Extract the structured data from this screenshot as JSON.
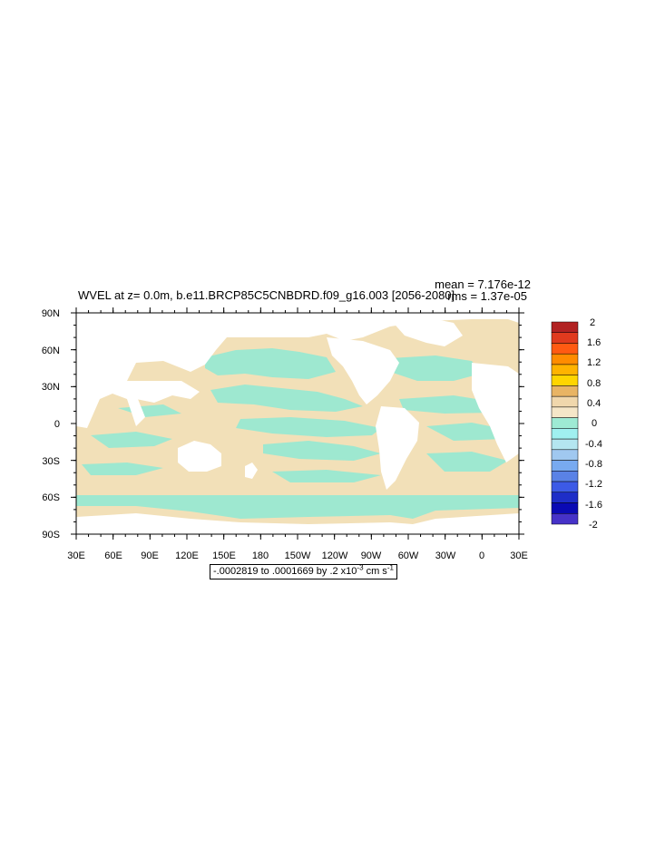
{
  "title": "WVEL at z=   0.0m, b.e11.BRCP85C5CNBDRD.f09_g16.003 [2056-2080]",
  "stats": {
    "mean": "mean = 7.176e-12",
    "rms": "rms = 1.37e-05"
  },
  "range_text": "-.0002819 to .0001669 by .2 x10",
  "range_exp": "-3",
  "range_units": " cm s",
  "range_units_exp": "-1",
  "lat_labels": [
    "90N",
    "60N",
    "30N",
    "0",
    "30S",
    "60S",
    "90S"
  ],
  "lon_labels": [
    "30E",
    "60E",
    "90E",
    "120E",
    "150E",
    "180",
    "150W",
    "120W",
    "90W",
    "60W",
    "30W",
    "0",
    "30E"
  ],
  "colorbar": {
    "labels": [
      "2",
      "1.6",
      "1.2",
      "0.8",
      "0.4",
      "0",
      "-0.4",
      "-0.8",
      "-1.2",
      "-1.6",
      "-2"
    ],
    "colors": [
      "#b22222",
      "#e03a1e",
      "#ff5a12",
      "#ff8c00",
      "#ffb300",
      "#ffd500",
      "#e8b464",
      "#f0d7ac",
      "#f5e6c8",
      "#9eead4",
      "#a0f0f0",
      "#b4e6f0",
      "#a0c8f0",
      "#78aaf0",
      "#5a82e6",
      "#3c5ae6",
      "#1e2ec8",
      "#0a0ab4",
      "#4632c8"
    ]
  },
  "fill_colors": {
    "land": "#ffffff",
    "positive": "#f2e0b8",
    "negative": "#9ee8d0"
  }
}
